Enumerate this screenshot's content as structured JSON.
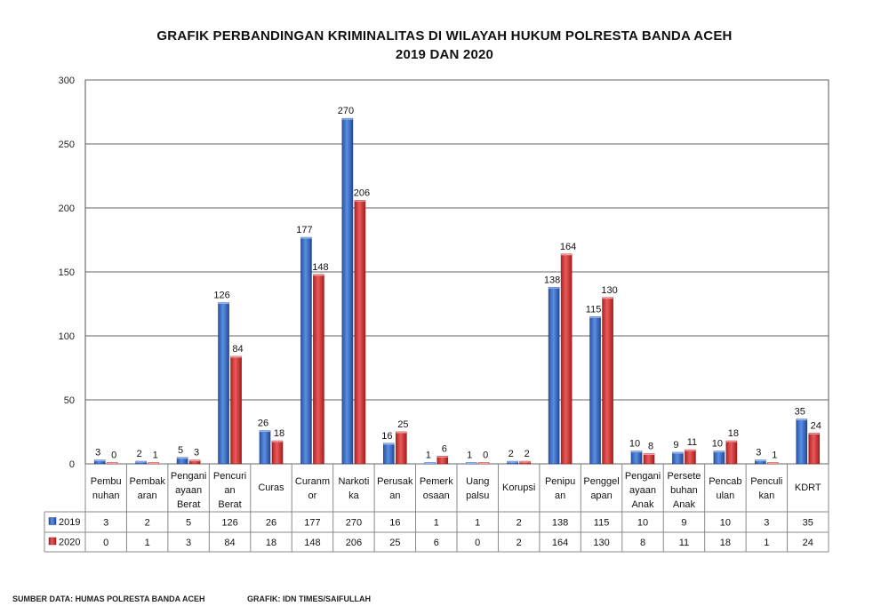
{
  "chart_data": {
    "type": "bar",
    "title": "GRAFIK PERBANDINGAN KRIMINALITAS DI WILAYAH HUKUM POLRESTA BANDA ACEH",
    "subtitle": "2019 DAN 2020",
    "categories": [
      [
        "Pembu",
        "nuhan"
      ],
      [
        "Pembak",
        "aran"
      ],
      [
        "Pengani",
        "ayaan",
        "Berat"
      ],
      [
        "Pencuri",
        "an",
        "Berat"
      ],
      [
        "Curas"
      ],
      [
        "Curanm",
        "or"
      ],
      [
        "Narkoti",
        "ka"
      ],
      [
        "Perusak",
        "an"
      ],
      [
        "Pemerk",
        "osaan"
      ],
      [
        "Uang",
        "palsu"
      ],
      [
        "Korupsi"
      ],
      [
        "Penipu",
        "an"
      ],
      [
        "Penggel",
        "apan"
      ],
      [
        "Pengani",
        "ayaan",
        "Anak"
      ],
      [
        "Persete",
        "buhan",
        "Anak"
      ],
      [
        "Pencab",
        "ulan"
      ],
      [
        "Penculi",
        "kan"
      ],
      [
        "KDRT"
      ]
    ],
    "series": [
      {
        "name": "2019",
        "color": "#3b6fc9",
        "values": [
          3,
          2,
          5,
          126,
          26,
          177,
          270,
          16,
          1,
          1,
          2,
          138,
          115,
          10,
          9,
          10,
          3,
          35
        ]
      },
      {
        "name": "2020",
        "color": "#d63a3a",
        "values": [
          0,
          1,
          3,
          84,
          18,
          148,
          206,
          25,
          6,
          0,
          2,
          164,
          130,
          8,
          11,
          18,
          1,
          24
        ]
      }
    ],
    "ylim": [
      0,
      300
    ],
    "yticks": [
      0,
      50,
      100,
      150,
      200,
      250,
      300
    ],
    "grid": true,
    "legend": "data-table"
  },
  "footer": {
    "source": "SUMBER DATA: HUMAS POLRESTA BANDA ACEH",
    "credit": "GRAFIK: IDN TIMES/SAIFULLAH"
  }
}
